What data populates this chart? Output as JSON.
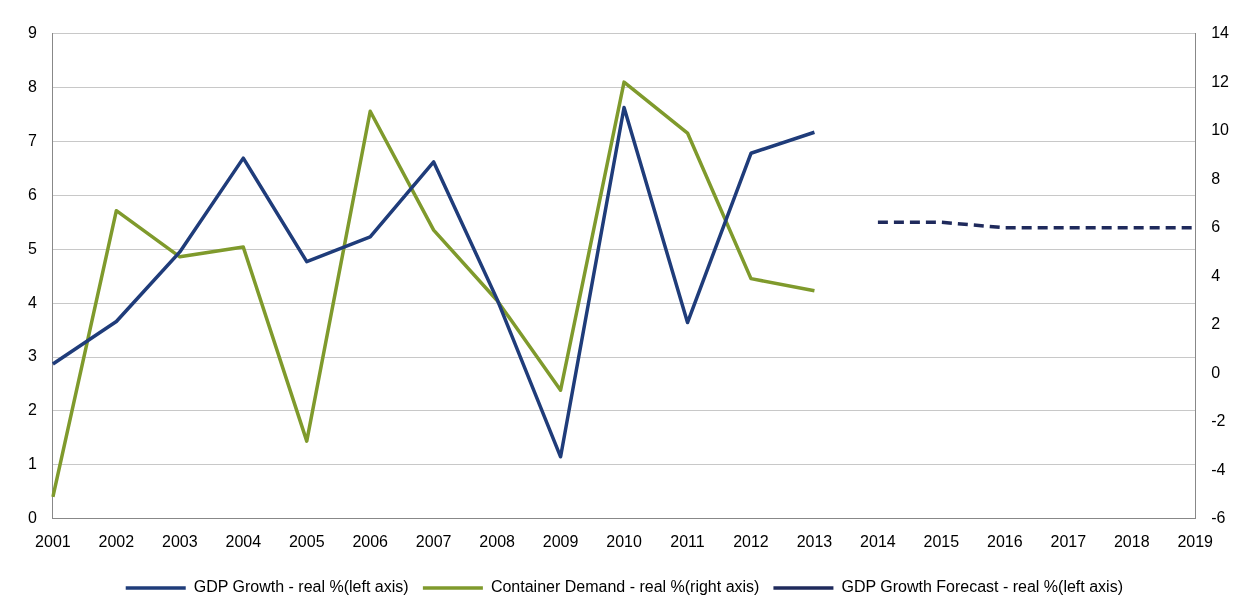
{
  "chart_data": {
    "type": "line",
    "categories": [
      "2001",
      "2002",
      "2003",
      "2004",
      "2005",
      "2006",
      "2007",
      "2008",
      "2009",
      "2010",
      "2011",
      "2012",
      "2013",
      "2014",
      "2015",
      "2016",
      "2017",
      "2018",
      "2019"
    ],
    "series": [
      {
        "name": "GDP Growth - real %(left axis)",
        "color": "#1f3c7a",
        "values": [
          2.87,
          3.66,
          4.95,
          6.69,
          4.77,
          5.23,
          6.62,
          4.07,
          1.15,
          7.63,
          3.64,
          6.78,
          7.17,
          null,
          null,
          null,
          null,
          null,
          null
        ]
      },
      {
        "name": "Container Demand - real %(right axis)",
        "color": "#7f9a2c",
        "axis": "y2",
        "values": [
          -5.1,
          6.7,
          4.8,
          5.2,
          -2.8,
          10.8,
          5.9,
          3.0,
          -0.7,
          12.0,
          9.9,
          3.9,
          3.4,
          null,
          null,
          null,
          null,
          null,
          null
        ]
      },
      {
        "name": "GDP Growth Forecast - real %(left axis)",
        "color": "#1f2a5c",
        "line_style": "dashed",
        "values": [
          null,
          null,
          null,
          null,
          null,
          null,
          null,
          null,
          null,
          null,
          null,
          null,
          null,
          5.5,
          5.5,
          5.4,
          5.4,
          5.4,
          5.4
        ]
      }
    ],
    "ylim": [
      0,
      9
    ],
    "yticks": [
      0,
      1,
      2,
      3,
      4,
      5,
      6,
      7,
      8,
      9
    ],
    "y2lim": [
      -6,
      14
    ],
    "y2ticks": [
      -6,
      -4,
      -2,
      0,
      2,
      4,
      6,
      8,
      10,
      12,
      14
    ],
    "grid": "y",
    "legend": "bottom",
    "marker": "none",
    "line_style": "solid"
  }
}
